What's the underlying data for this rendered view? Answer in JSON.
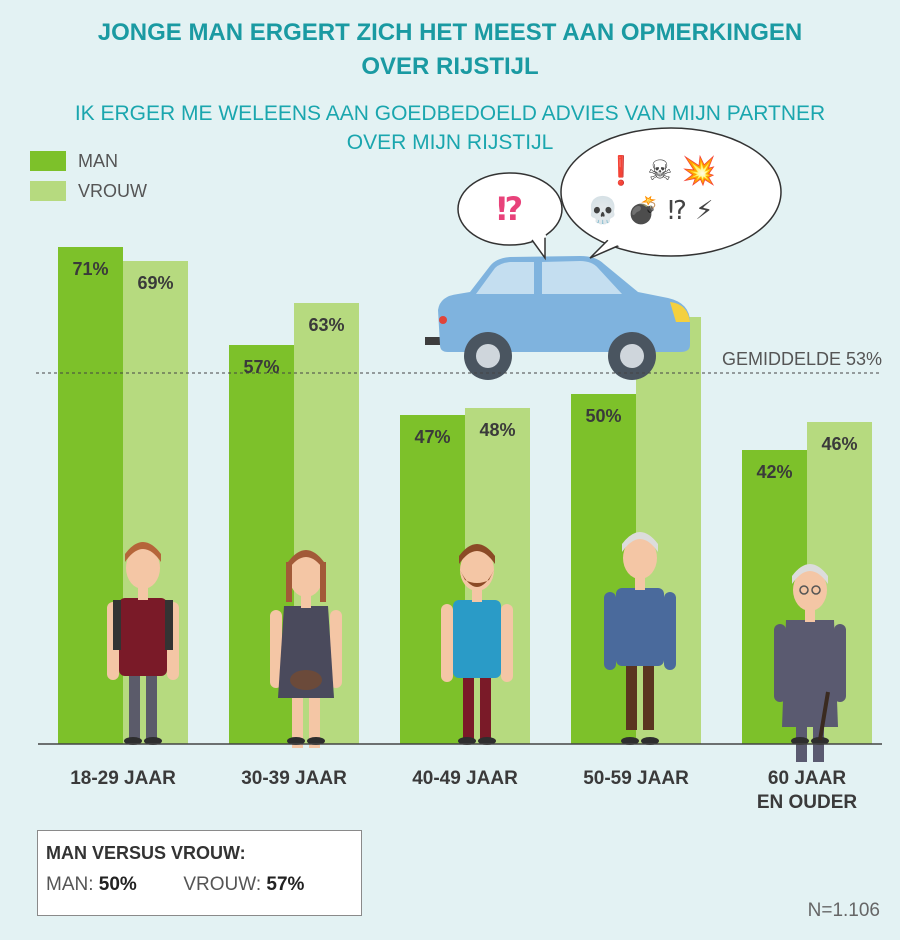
{
  "title_line1": "JONGE MAN ERGERT ZICH HET MEEST AAN OPMERKINGEN",
  "title_line2": "OVER RIJSTIJL",
  "subtitle_line1": "IK ERGER ME WELEENS AAN GOEDBEDOELD ADVIES VAN MIJN PARTNER",
  "subtitle_line2": "OVER MIJN RIJSTIJL",
  "colors": {
    "man": "#7dc12a",
    "vrouw": "#b6da7f",
    "title": "#1a9aa2"
  },
  "speech_left": "⁉",
  "speech_right_top": "❗ ☠ 💥",
  "speech_right_bottom": "💀 💣 ⁉ ⚡",
  "chart_data": {
    "type": "bar",
    "categories": [
      "18-29 JAAR",
      "30-39 JAAR",
      "40-49 JAAR",
      "50-59 JAAR",
      "60 JAAR EN OUDER"
    ],
    "category_lines": [
      [
        "18-29 JAAR"
      ],
      [
        "30-39 JAAR"
      ],
      [
        "40-49 JAAR"
      ],
      [
        "50-59 JAAR"
      ],
      [
        "60 JAAR",
        "EN OUDER"
      ]
    ],
    "series": [
      {
        "name": "MAN",
        "values": [
          71,
          57,
          47,
          50,
          42
        ],
        "labels": [
          "71%",
          "57%",
          "47%",
          "50%",
          "42%"
        ]
      },
      {
        "name": "VROUW",
        "values": [
          69,
          63,
          48,
          61,
          46
        ],
        "labels": [
          "69%",
          "63%",
          "48%",
          "61%",
          "46%"
        ]
      }
    ],
    "average": {
      "value": 53,
      "label": "GEMIDDELDE 53%"
    },
    "ylim": [
      0,
      100
    ],
    "legend": "top-left"
  },
  "summary": {
    "title": "MAN VERSUS VROUW:",
    "man_label": "MAN:",
    "man_value": "50%",
    "vrouw_label": "VROUW:",
    "vrouw_value": "57%"
  },
  "sample_size": "N=1.106"
}
